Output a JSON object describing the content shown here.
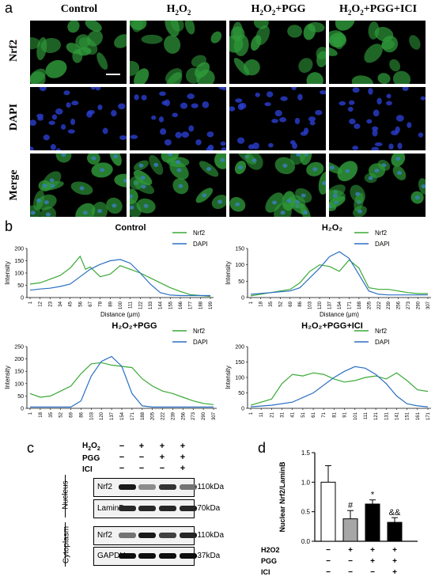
{
  "panel_a": {
    "letter": "a",
    "columns": [
      "Control",
      "H2O2",
      "H2O2+PGG",
      "H2O2+PGG+ICI"
    ],
    "rows": [
      "Nrf2",
      "DAPI",
      "Merge"
    ]
  },
  "panel_b": {
    "letter": "b",
    "y_label": "Intensity",
    "x_label": "Distance (μm)",
    "legend": {
      "nrf2": "Nrf2",
      "dapi": "DAPI"
    },
    "colors": {
      "nrf2": "#3aa935",
      "dapi": "#2b6fc2"
    }
  },
  "panel_c": {
    "letter": "c",
    "treatments": [
      {
        "name": "H2O2",
        "signs": [
          "−",
          "+",
          "+",
          "+"
        ]
      },
      {
        "name": "PGG",
        "signs": [
          "−",
          "−",
          "+",
          "+"
        ]
      },
      {
        "name": "ICI",
        "signs": [
          "−",
          "−",
          "−",
          "+"
        ]
      }
    ],
    "fractions": [
      "Nucleus",
      "Cytoplasm"
    ],
    "blots": [
      {
        "protein": "Nrf2",
        "size": "110kDa",
        "levels": [
          0.9,
          0.45,
          0.8,
          0.55
        ]
      },
      {
        "protein": "LaminB",
        "size": "70kDa",
        "levels": [
          0.85,
          0.85,
          0.85,
          0.85
        ]
      },
      {
        "protein": "Nrf2",
        "size": "110kDa",
        "levels": [
          0.55,
          0.9,
          0.75,
          0.85
        ]
      },
      {
        "protein": "GAPDH",
        "size": "37kDa",
        "levels": [
          0.95,
          0.95,
          0.95,
          0.95
        ]
      }
    ]
  },
  "panel_d": {
    "letter": "d",
    "treatments": [
      {
        "name": "H2O2",
        "signs": [
          "−",
          "+",
          "+",
          "+"
        ]
      },
      {
        "name": "PGG",
        "signs": [
          "−",
          "−",
          "+",
          "+"
        ]
      },
      {
        "name": "ICI",
        "signs": [
          "−",
          "−",
          "−",
          "+"
        ]
      }
    ]
  },
  "chart_data": [
    {
      "type": "line",
      "title": "Control",
      "xlabel": "Distance (μm)",
      "ylabel": "Intensity",
      "x_ticks": [
        "1",
        "12",
        "23",
        "34",
        "45",
        "56",
        "67",
        "78",
        "89",
        "100",
        "111",
        "122",
        "133",
        "144",
        "155",
        "166",
        "177",
        "188",
        "199"
      ],
      "ylim": [
        0,
        200
      ],
      "y_ticks": [
        0,
        50,
        100,
        150,
        200
      ],
      "series": [
        {
          "name": "Nrf2",
          "points": [
            [
              1,
              55
            ],
            [
              12,
              60
            ],
            [
              23,
              75
            ],
            [
              34,
              90
            ],
            [
              45,
              120
            ],
            [
              56,
              168
            ],
            [
              62,
              115
            ],
            [
              67,
              125
            ],
            [
              78,
              85
            ],
            [
              89,
              95
            ],
            [
              100,
              130
            ],
            [
              111,
              115
            ],
            [
              122,
              100
            ],
            [
              133,
              80
            ],
            [
              144,
              60
            ],
            [
              155,
              40
            ],
            [
              166,
              25
            ],
            [
              177,
              12
            ],
            [
              188,
              8
            ],
            [
              199,
              5
            ]
          ]
        },
        {
          "name": "DAPI",
          "points": [
            [
              1,
              30
            ],
            [
              12,
              35
            ],
            [
              23,
              38
            ],
            [
              34,
              45
            ],
            [
              45,
              55
            ],
            [
              56,
              85
            ],
            [
              67,
              115
            ],
            [
              78,
              135
            ],
            [
              89,
              150
            ],
            [
              100,
              155
            ],
            [
              111,
              140
            ],
            [
              122,
              100
            ],
            [
              133,
              55
            ],
            [
              144,
              20
            ],
            [
              155,
              10
            ],
            [
              166,
              8
            ],
            [
              177,
              8
            ],
            [
              188,
              8
            ],
            [
              199,
              8
            ]
          ]
        }
      ]
    },
    {
      "type": "line",
      "title": "H₂O₂",
      "xlabel": "Distance (μm)",
      "ylabel": "Intensity",
      "x_ticks": [
        "1",
        "18",
        "35",
        "52",
        "69",
        "86",
        "103",
        "120",
        "137",
        "154",
        "171",
        "188",
        "205",
        "222",
        "239",
        "256",
        "273",
        "290",
        "307"
      ],
      "ylim": [
        0,
        150
      ],
      "y_ticks": [
        0,
        50,
        100,
        150
      ],
      "series": [
        {
          "name": "Nrf2",
          "points": [
            [
              1,
              5
            ],
            [
              35,
              15
            ],
            [
              69,
              25
            ],
            [
              86,
              45
            ],
            [
              103,
              80
            ],
            [
              120,
              100
            ],
            [
              137,
              95
            ],
            [
              154,
              80
            ],
            [
              171,
              115
            ],
            [
              188,
              90
            ],
            [
              205,
              30
            ],
            [
              222,
              25
            ],
            [
              239,
              25
            ],
            [
              256,
              20
            ],
            [
              273,
              15
            ],
            [
              290,
              12
            ],
            [
              307,
              12
            ]
          ]
        },
        {
          "name": "DAPI",
          "points": [
            [
              1,
              10
            ],
            [
              35,
              15
            ],
            [
              69,
              20
            ],
            [
              86,
              30
            ],
            [
              103,
              60
            ],
            [
              120,
              90
            ],
            [
              137,
              125
            ],
            [
              154,
              140
            ],
            [
              171,
              120
            ],
            [
              188,
              70
            ],
            [
              205,
              20
            ],
            [
              222,
              10
            ],
            [
              239,
              8
            ],
            [
              256,
              8
            ],
            [
              273,
              8
            ],
            [
              290,
              8
            ],
            [
              307,
              8
            ]
          ]
        }
      ]
    },
    {
      "type": "line",
      "title": "H₂O₂+PGG",
      "xlabel": "Distance (μm)",
      "ylabel": "Intensity",
      "x_ticks": [
        "1",
        "18",
        "35",
        "52",
        "69",
        "86",
        "103",
        "120",
        "137",
        "154",
        "171",
        "188",
        "205",
        "222",
        "239",
        "256",
        "273",
        "290",
        "307"
      ],
      "ylim": [
        0,
        250
      ],
      "y_ticks": [
        0,
        50,
        100,
        150,
        200,
        250
      ],
      "series": [
        {
          "name": "Nrf2",
          "points": [
            [
              1,
              60
            ],
            [
              18,
              45
            ],
            [
              35,
              50
            ],
            [
              52,
              70
            ],
            [
              69,
              90
            ],
            [
              86,
              140
            ],
            [
              103,
              180
            ],
            [
              120,
              185
            ],
            [
              137,
              175
            ],
            [
              154,
              170
            ],
            [
              171,
              165
            ],
            [
              188,
              120
            ],
            [
              205,
              90
            ],
            [
              222,
              70
            ],
            [
              239,
              60
            ],
            [
              256,
              45
            ],
            [
              273,
              30
            ],
            [
              290,
              20
            ],
            [
              307,
              15
            ]
          ]
        },
        {
          "name": "DAPI",
          "points": [
            [
              1,
              5
            ],
            [
              35,
              5
            ],
            [
              69,
              5
            ],
            [
              86,
              30
            ],
            [
              103,
              130
            ],
            [
              120,
              190
            ],
            [
              137,
              210
            ],
            [
              154,
              170
            ],
            [
              171,
              60
            ],
            [
              188,
              10
            ],
            [
              205,
              5
            ],
            [
              239,
              5
            ],
            [
              307,
              5
            ]
          ]
        }
      ]
    },
    {
      "type": "line",
      "title": "H₂O₂+PGG+ICI",
      "xlabel": "Distance (μm)",
      "ylabel": "Intensity",
      "x_ticks": [
        "1",
        "11",
        "21",
        "31",
        "41",
        "51",
        "61",
        "71",
        "81",
        "91",
        "101",
        "111",
        "121",
        "131",
        "141",
        "151",
        "161",
        "171"
      ],
      "ylim": [
        0,
        200
      ],
      "y_ticks": [
        0,
        50,
        100,
        150,
        200
      ],
      "series": [
        {
          "name": "Nrf2",
          "points": [
            [
              1,
              10
            ],
            [
              11,
              20
            ],
            [
              21,
              30
            ],
            [
              31,
              80
            ],
            [
              41,
              110
            ],
            [
              51,
              105
            ],
            [
              61,
              115
            ],
            [
              71,
              110
            ],
            [
              81,
              95
            ],
            [
              91,
              85
            ],
            [
              101,
              90
            ],
            [
              111,
              100
            ],
            [
              121,
              105
            ],
            [
              131,
              95
            ],
            [
              141,
              115
            ],
            [
              151,
              90
            ],
            [
              161,
              60
            ],
            [
              171,
              55
            ]
          ]
        },
        {
          "name": "DAPI",
          "points": [
            [
              1,
              5
            ],
            [
              21,
              10
            ],
            [
              41,
              20
            ],
            [
              61,
              50
            ],
            [
              81,
              100
            ],
            [
              91,
              120
            ],
            [
              101,
              135
            ],
            [
              111,
              130
            ],
            [
              121,
              110
            ],
            [
              131,
              80
            ],
            [
              141,
              40
            ],
            [
              151,
              15
            ],
            [
              161,
              8
            ],
            [
              171,
              5
            ]
          ]
        }
      ]
    },
    {
      "type": "bar",
      "ylabel": "Nuclear Nrf2/LaminB",
      "categories": [
        "Control",
        "H2O2",
        "H2O2+PGG",
        "H2O2+PGG+ICI"
      ],
      "values": [
        1.0,
        0.38,
        0.63,
        0.32
      ],
      "errors": [
        0.28,
        0.14,
        0.07,
        0.08
      ],
      "annotations": [
        "",
        "#",
        "*",
        "&&"
      ],
      "ylim": [
        0.0,
        1.5
      ],
      "y_ticks": [
        "0.0",
        "0.5",
        "1.0",
        "1.5"
      ],
      "colors": [
        "#ffffff",
        "#a6a6a6",
        "#000000",
        "#000000"
      ]
    }
  ]
}
